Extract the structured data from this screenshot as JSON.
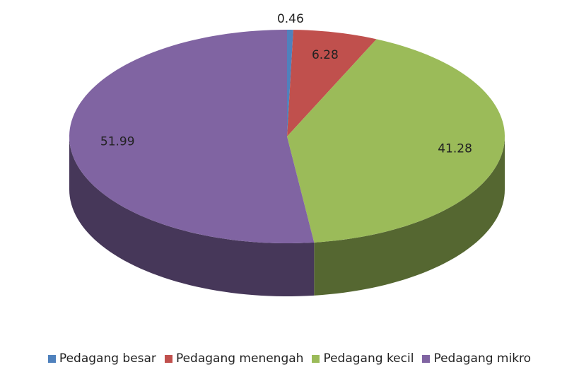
{
  "chart_data": {
    "type": "pie",
    "categories": [
      "Pedagang besar",
      "Pedagang menengah",
      "Pedagang kecil",
      "Pedagang mikro"
    ],
    "values": [
      0.46,
      6.28,
      41.28,
      51.99
    ],
    "colors": [
      "#4f81bd",
      "#c0504d",
      "#9bbb59",
      "#8064a2"
    ],
    "legend": "bottom"
  }
}
